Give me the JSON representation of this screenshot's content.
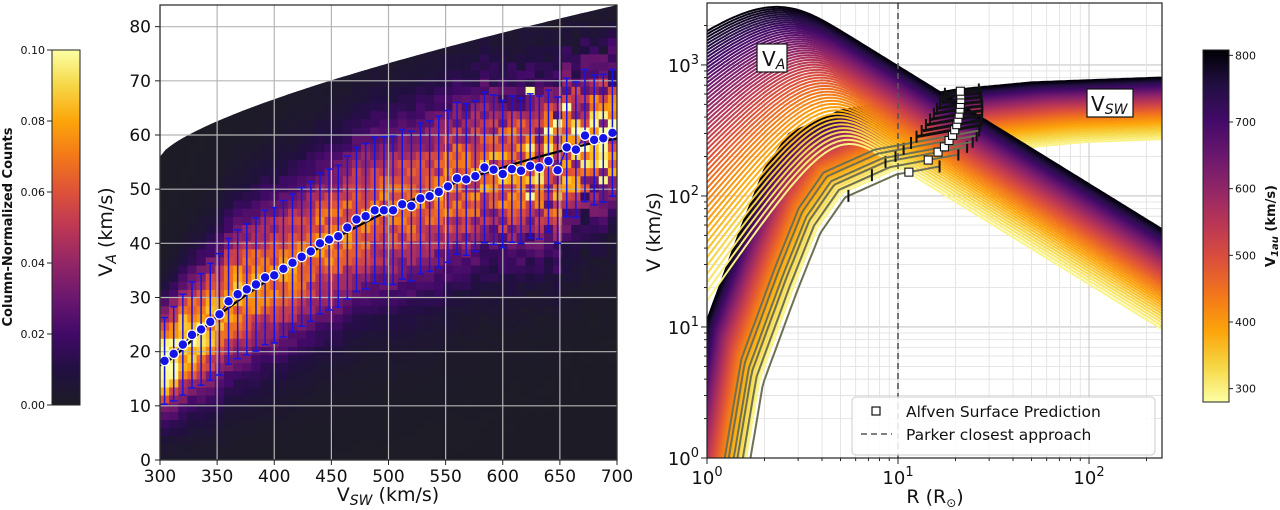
{
  "chart_data": [
    {
      "type": "heatmap",
      "overlay": "scatter-with-errorbars-and-fit-line",
      "title": "",
      "xlabel": {
        "base": "V",
        "sub": "SW",
        "rest": " (km/s)"
      },
      "ylabel": {
        "base": "V",
        "sub": "A",
        "rest": " (km/s)"
      },
      "xlim": [
        300,
        700
      ],
      "ylim": [
        0,
        84
      ],
      "xticks": [
        "300",
        "350",
        "400",
        "450",
        "500",
        "550",
        "600",
        "650",
        "700"
      ],
      "yticks": [
        "0",
        "10",
        "20",
        "30",
        "40",
        "50",
        "60",
        "70",
        "80"
      ],
      "grid": true,
      "colormap": "inferno",
      "colorbar": {
        "label": "Column-Normalized Counts",
        "range": [
          0,
          0.1
        ],
        "ticks": [
          "0.00",
          "0.02",
          "0.04",
          "0.06",
          "0.08",
          "0.10"
        ],
        "position": "left"
      },
      "upper_envelope": {
        "x": [
          300,
          400,
          500,
          600,
          700
        ],
        "y": [
          56,
          66.6,
          73.2,
          78.9,
          84
        ]
      },
      "points": {
        "color": "#1414e6",
        "x": [
          304,
          312,
          320,
          328,
          336,
          344,
          352,
          360,
          368,
          376,
          384,
          392,
          400,
          408,
          416,
          424,
          432,
          440,
          448,
          456,
          464,
          472,
          480,
          488,
          496,
          504,
          512,
          520,
          528,
          536,
          544,
          552,
          560,
          568,
          576,
          584,
          592,
          600,
          608,
          616,
          624,
          632,
          640,
          648,
          656,
          664,
          672,
          680,
          688,
          696
        ],
        "y": [
          18.3,
          19.6,
          21.3,
          23.1,
          24.1,
          25.5,
          26.9,
          29.3,
          30.6,
          31.5,
          32.4,
          33.7,
          34.1,
          35.3,
          36.4,
          37.5,
          38.5,
          40.0,
          40.7,
          41.3,
          42.9,
          44.4,
          45.0,
          46.1,
          46.1,
          46.1,
          47.2,
          46.9,
          48.3,
          48.7,
          49.5,
          50.5,
          52.0,
          51.8,
          52.4,
          54.0,
          53.6,
          52.8,
          53.7,
          53.4,
          54.3,
          54.0,
          55.2,
          53.5,
          57.7,
          57.3,
          59.9,
          59.1,
          59.4,
          60.4
        ],
        "err": [
          8,
          8.7,
          9.3,
          9.8,
          10.3,
          10.8,
          11.2,
          11.6,
          11.9,
          12.1,
          12.3,
          12.4,
          12.5,
          12.6,
          12.7,
          12.8,
          12.9,
          13,
          13,
          13.1,
          13.2,
          13.3,
          13.4,
          13.5,
          13.6,
          13.7,
          13.8,
          13.8,
          13.9,
          13.9,
          14,
          14,
          14,
          14,
          13.9,
          13.9,
          13.8,
          13.6,
          13.5,
          13.4,
          13.3,
          13.2,
          13.1,
          13.5,
          12.8,
          12.5,
          12.2,
          12,
          11.8,
          11.7
        ]
      },
      "fit": {
        "x": [
          300,
          350,
          400,
          450,
          500,
          550,
          600,
          650,
          700
        ],
        "y": [
          17.5,
          26.5,
          34,
          40.5,
          46,
          50.5,
          54,
          57,
          59.3
        ],
        "color": "#000000"
      }
    },
    {
      "type": "line",
      "title": "",
      "xlabel": {
        "base": "R (R",
        "sub": "⊙",
        "rest": ")"
      },
      "ylabel": {
        "base": "V (km/s)",
        "sub": "",
        "rest": ""
      },
      "xscale": "log",
      "yscale": "log",
      "xlim": [
        1,
        241
      ],
      "ylim": [
        1,
        2970
      ],
      "xticks": [
        {
          "base": "10",
          "exp": "0"
        },
        {
          "base": "10",
          "exp": "1"
        },
        {
          "base": "10",
          "exp": "2"
        }
      ],
      "yticks": [
        {
          "base": "10",
          "exp": "0"
        },
        {
          "base": "10",
          "exp": "1"
        },
        {
          "base": "10",
          "exp": "2"
        },
        {
          "base": "10",
          "exp": "3"
        }
      ],
      "grid": "major-and-minor",
      "colormap": "inferno_r",
      "colorbar": {
        "label": {
          "base": "V",
          "sub": "1au",
          "rest": " (km/s)"
        },
        "range": [
          280,
          808
        ],
        "ticks": [
          "300",
          "400",
          "500",
          "600",
          "700",
          "800"
        ],
        "position": "right"
      },
      "series_parameter_v1au": [
        280,
        290,
        300,
        310,
        320,
        330,
        340,
        350,
        360,
        370,
        380,
        390,
        400,
        410,
        420,
        430,
        440,
        450,
        460,
        470,
        480,
        490,
        500,
        510,
        520,
        530,
        540,
        550,
        560,
        570,
        580,
        590,
        600,
        610,
        620,
        630,
        640,
        650,
        660,
        670,
        680,
        690,
        700,
        710,
        720,
        730,
        740,
        750,
        760,
        770,
        780,
        790,
        800
      ],
      "families": [
        "V_A",
        "V_SW"
      ],
      "annotations": [
        {
          "base": "V",
          "sub": "A"
        },
        {
          "base": "V",
          "sub": "SW"
        }
      ],
      "parker_closest_approach_R": 10,
      "alfven_surface": {
        "R": [
          11.4,
          14.4,
          16.2,
          17.5,
          18.5,
          19.3,
          19.8,
          20.3,
          20.6,
          20.9,
          21.1,
          21.2,
          21.3,
          21.3,
          21.2
        ],
        "V": [
          152,
          188,
          216,
          237,
          265,
          290,
          320,
          350,
          385,
          420,
          460,
          500,
          545,
          590,
          630
        ],
        "R_low": [
          5.5,
          7.3,
          8.6,
          9.7,
          10.7,
          11.7,
          12.5,
          13.3,
          14.0,
          14.7,
          15.4,
          16.0,
          16.6,
          17.1,
          17.6
        ],
        "R_high": [
          16.5,
          20.7,
          23.0,
          24.6,
          25.8,
          26.6,
          27.0,
          27.4,
          27.5,
          27.6,
          27.6,
          27.4,
          27.2,
          26.9,
          26.5
        ]
      },
      "legend": {
        "position": "lower-right",
        "entries": [
          {
            "label": "Alfven Surface Prediction",
            "marker": "square"
          },
          {
            "label": "Parker closest approach",
            "style": "dashed"
          }
        ]
      },
      "colors": {
        "prediction_curves": "#6e7052",
        "parker_line": "#555555"
      }
    }
  ]
}
